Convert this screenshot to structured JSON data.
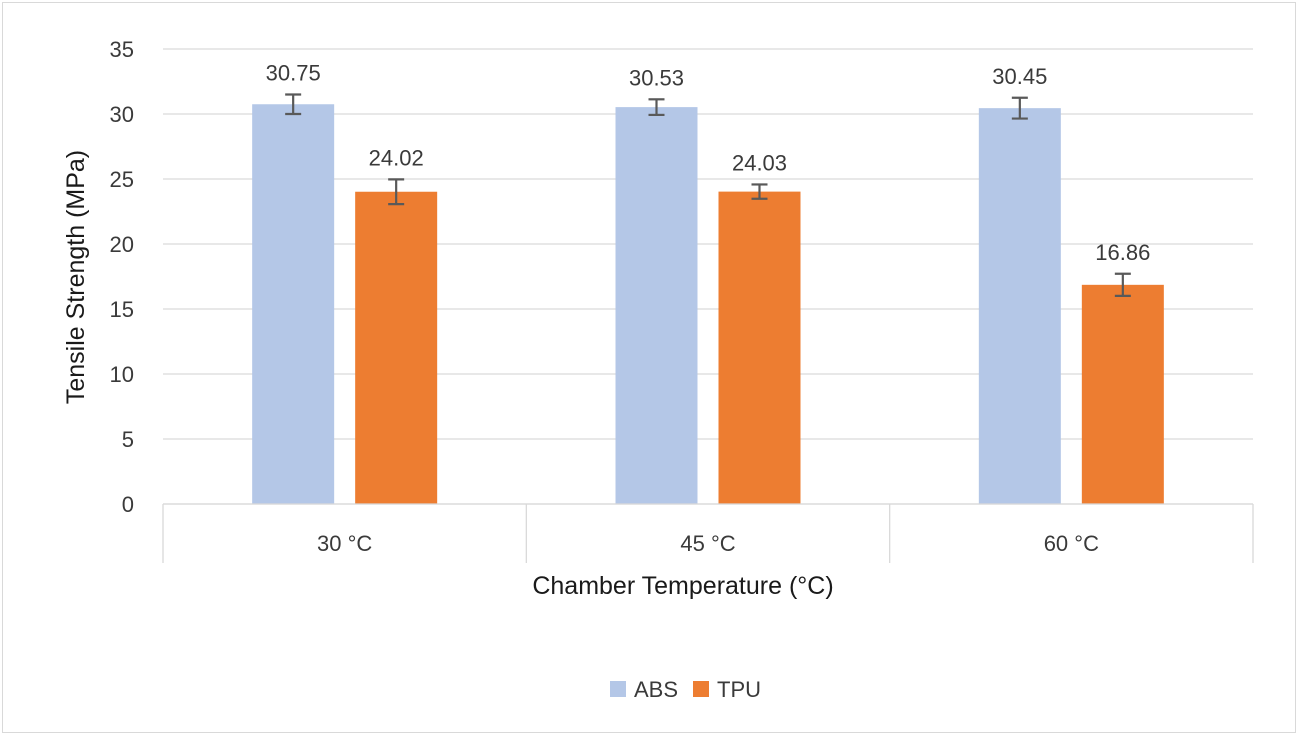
{
  "chart_data": {
    "type": "bar",
    "title": "",
    "xlabel": "Chamber Temperature (°C)",
    "ylabel": "Tensile Strength (MPa)",
    "categories": [
      "30 °C",
      "45 °C",
      "60 °C"
    ],
    "ylim": [
      0,
      35
    ],
    "yticks": [
      0,
      5,
      10,
      15,
      20,
      25,
      30,
      35
    ],
    "grid": true,
    "legend_position": "bottom",
    "series": [
      {
        "name": "ABS",
        "color": "#b4c7e7",
        "values": [
          30.75,
          30.53,
          30.45
        ],
        "labels": [
          "30.75",
          "30.53",
          "30.45"
        ],
        "error": [
          0.75,
          0.6,
          0.8
        ]
      },
      {
        "name": "TPU",
        "color": "#ed7d31",
        "values": [
          24.02,
          24.03,
          16.86
        ],
        "labels": [
          "24.02",
          "24.03",
          "16.86"
        ],
        "error": [
          0.95,
          0.55,
          0.85
        ]
      }
    ]
  }
}
